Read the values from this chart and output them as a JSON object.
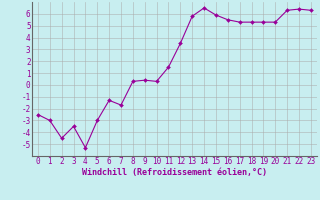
{
  "x": [
    0,
    1,
    2,
    3,
    4,
    5,
    6,
    7,
    8,
    9,
    10,
    11,
    12,
    13,
    14,
    15,
    16,
    17,
    18,
    19,
    20,
    21,
    22,
    23
  ],
  "y": [
    -2.5,
    -3.0,
    -4.5,
    -3.5,
    -5.3,
    -3.0,
    -1.3,
    -1.7,
    0.3,
    0.4,
    0.3,
    1.5,
    3.5,
    5.8,
    6.5,
    5.9,
    5.5,
    5.3,
    5.3,
    5.3,
    5.3,
    6.3,
    6.4,
    6.3
  ],
  "line_color": "#990099",
  "marker": "D",
  "marker_size": 2.0,
  "bg_color": "#c8eef0",
  "grid_color": "#aaaaaa",
  "xlabel": "Windchill (Refroidissement éolien,°C)",
  "xlim": [
    -0.5,
    23.5
  ],
  "ylim": [
    -6,
    7
  ],
  "yticks": [
    -5,
    -4,
    -3,
    -2,
    -1,
    0,
    1,
    2,
    3,
    4,
    5,
    6
  ],
  "xticks": [
    0,
    1,
    2,
    3,
    4,
    5,
    6,
    7,
    8,
    9,
    10,
    11,
    12,
    13,
    14,
    15,
    16,
    17,
    18,
    19,
    20,
    21,
    22,
    23
  ],
  "tick_color": "#990099",
  "font_family": "monospace",
  "tick_fontsize": 5.5,
  "xlabel_fontsize": 6.0
}
